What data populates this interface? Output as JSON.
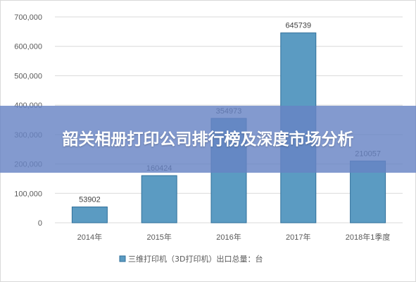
{
  "banner": {
    "title": "韶关相册打印公司排行榜及深度市场分析"
  },
  "colors": {
    "bar_fill": "#5b9bc2",
    "bar_stroke": "#2f6f9a",
    "grid": "#d9d9d9",
    "banner_bg": "#6884c4"
  },
  "chart_data": {
    "type": "bar",
    "categories": [
      "2014年",
      "2015年",
      "2016年",
      "2017年",
      "2018年1季度"
    ],
    "series": [
      {
        "name": "三维打印机（3D打印机）出口总量：台",
        "values": [
          53902,
          160424,
          354973,
          645739,
          210057
        ]
      }
    ],
    "data_labels": [
      "53902",
      "160424",
      "354973",
      "645739",
      "210057"
    ],
    "y_ticks": [
      0,
      100000,
      200000,
      300000,
      400000,
      500000,
      600000,
      700000
    ],
    "y_tick_labels": [
      "0",
      "100,000",
      "200,000",
      "300,000",
      "400,000",
      "500,000",
      "600,000",
      "700,000"
    ],
    "ylim": [
      0,
      700000
    ],
    "grid": true,
    "legend_position": "bottom"
  }
}
